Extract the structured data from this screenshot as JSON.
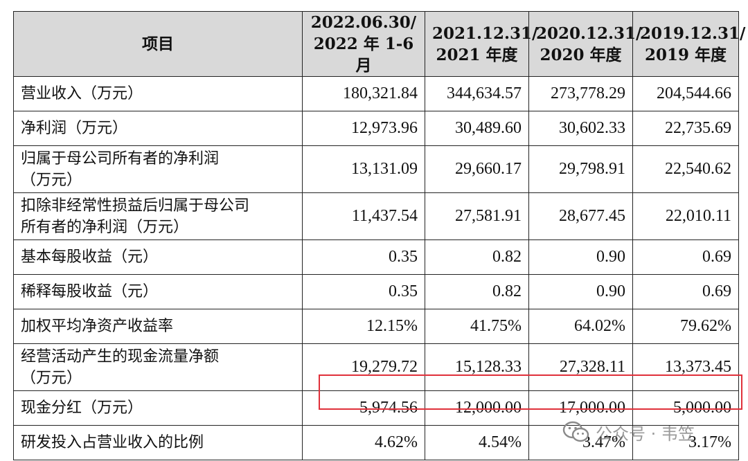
{
  "table": {
    "headers": [
      "项目",
      "2022.06.30/\n2022 年 1-6 月",
      "2021.12.31/\n2021 年度",
      "2020.12.31/\n2020 年度",
      "2019.12.31/\n2019 年度"
    ],
    "rows": [
      {
        "label": "营业收入（万元）",
        "values": [
          "180,321.84",
          "344,634.57",
          "273,778.29",
          "204,544.66"
        ]
      },
      {
        "label": "净利润（万元）",
        "values": [
          "12,973.96",
          "30,489.60",
          "30,602.33",
          "22,735.69"
        ]
      },
      {
        "label": "归属于母公司所有者的净利润\n（万元）",
        "values": [
          "13,131.09",
          "29,660.17",
          "29,798.91",
          "22,540.62"
        ]
      },
      {
        "label": "扣除非经常性损益后归属于母公司\n所有者的净利润（万元）",
        "values": [
          "11,437.54",
          "27,581.91",
          "28,677.45",
          "22,010.11"
        ]
      },
      {
        "label": "基本每股收益（元）",
        "values": [
          "0.35",
          "0.82",
          "0.90",
          "0.69"
        ]
      },
      {
        "label": "稀释每股收益（元）",
        "values": [
          "0.35",
          "0.82",
          "0.90",
          "0.69"
        ]
      },
      {
        "label": "加权平均净资产收益率",
        "values": [
          "12.15%",
          "41.75%",
          "64.02%",
          "79.62%"
        ]
      },
      {
        "label": "经营活动产生的现金流量净额\n（万元）",
        "values": [
          "19,279.72",
          "15,128.33",
          "27,328.11",
          "13,373.45"
        ]
      },
      {
        "label": "现金分红（万元）",
        "values": [
          "5,974.56",
          "12,000.00",
          "17,000.00",
          "5,000.00"
        ]
      },
      {
        "label": "研发投入占营业收入的比例",
        "values": [
          "4.62%",
          "4.54%",
          "3.47%",
          "3.17%"
        ]
      }
    ]
  },
  "watermark": {
    "text": "公众号 · 韦笠",
    "icon": "wechat-icon",
    "color": "#808080"
  },
  "highlight": {
    "row": "现金分红（万元）",
    "color": "#e0303a"
  }
}
